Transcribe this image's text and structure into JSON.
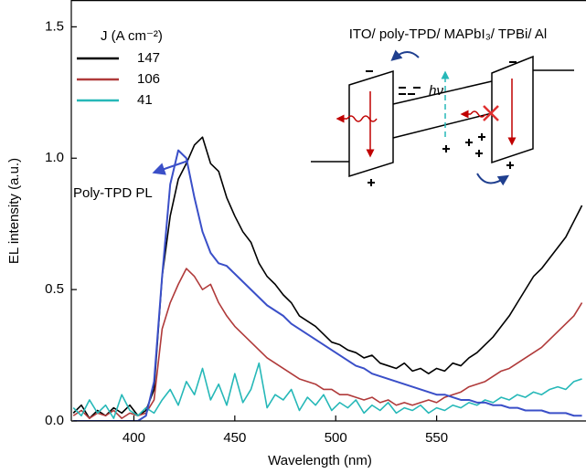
{
  "chart_data": {
    "type": "line",
    "x_label": "Wavelength (nm)",
    "y_label": "EL intensity (a.u.)",
    "legend_title": "J (A cm⁻²)",
    "legend": "upper left",
    "x": [
      370,
      374,
      378,
      382,
      386,
      390,
      394,
      398,
      402,
      406,
      410,
      414,
      418,
      422,
      426,
      430,
      434,
      438,
      442,
      446,
      450,
      454,
      458,
      462,
      466,
      470,
      474,
      478,
      482,
      486,
      490,
      494,
      498,
      502,
      506,
      510,
      514,
      518,
      522,
      526,
      530,
      534,
      538,
      542,
      546,
      550,
      554,
      558,
      562,
      566,
      570,
      574,
      578,
      582,
      586,
      590,
      594,
      598,
      602,
      606,
      610,
      614,
      618,
      622
    ],
    "series": [
      {
        "name": "147",
        "color": "#000000",
        "values": [
          0.03,
          0.06,
          0.01,
          0.04,
          0.02,
          0.05,
          0.03,
          0.06,
          0.02,
          0.04,
          0.12,
          0.55,
          0.78,
          0.92,
          0.98,
          1.05,
          1.08,
          0.98,
          0.95,
          0.85,
          0.78,
          0.72,
          0.68,
          0.6,
          0.55,
          0.52,
          0.48,
          0.45,
          0.4,
          0.38,
          0.36,
          0.33,
          0.3,
          0.29,
          0.27,
          0.26,
          0.24,
          0.25,
          0.22,
          0.21,
          0.2,
          0.22,
          0.19,
          0.2,
          0.18,
          0.2,
          0.19,
          0.22,
          0.21,
          0.24,
          0.26,
          0.29,
          0.32,
          0.36,
          0.4,
          0.45,
          0.5,
          0.55,
          0.58,
          0.62,
          0.66,
          0.7,
          0.76,
          0.82
        ]
      },
      {
        "name": "106",
        "color": "#b03a3a",
        "values": [
          0.02,
          0.04,
          0.01,
          0.03,
          0.02,
          0.04,
          0.01,
          0.03,
          0.02,
          0.03,
          0.08,
          0.35,
          0.45,
          0.52,
          0.58,
          0.55,
          0.5,
          0.52,
          0.45,
          0.4,
          0.36,
          0.33,
          0.3,
          0.27,
          0.24,
          0.22,
          0.2,
          0.18,
          0.16,
          0.15,
          0.14,
          0.12,
          0.12,
          0.1,
          0.1,
          0.09,
          0.08,
          0.09,
          0.07,
          0.08,
          0.06,
          0.07,
          0.06,
          0.07,
          0.08,
          0.07,
          0.09,
          0.1,
          0.11,
          0.13,
          0.14,
          0.15,
          0.17,
          0.19,
          0.2,
          0.22,
          0.24,
          0.26,
          0.28,
          0.31,
          0.34,
          0.37,
          0.4,
          0.45
        ]
      },
      {
        "name": "41",
        "color": "#26b8b8",
        "values": [
          0.05,
          0.02,
          0.08,
          0.03,
          0.06,
          0.01,
          0.1,
          0.04,
          0.02,
          0.05,
          0.03,
          0.08,
          0.12,
          0.06,
          0.15,
          0.1,
          0.2,
          0.08,
          0.14,
          0.06,
          0.18,
          0.07,
          0.12,
          0.22,
          0.05,
          0.1,
          0.08,
          0.12,
          0.04,
          0.09,
          0.06,
          0.1,
          0.04,
          0.07,
          0.05,
          0.08,
          0.03,
          0.06,
          0.04,
          0.07,
          0.03,
          0.05,
          0.04,
          0.06,
          0.03,
          0.05,
          0.04,
          0.06,
          0.05,
          0.07,
          0.06,
          0.08,
          0.07,
          0.09,
          0.08,
          0.1,
          0.09,
          0.11,
          0.1,
          0.12,
          0.13,
          0.12,
          0.15,
          0.16
        ]
      },
      {
        "name": "Poly-TPD PL",
        "color": "#3a4fc8",
        "in_legend": false,
        "values": [
          0,
          0,
          0,
          0,
          0,
          0,
          0,
          0,
          0,
          0.02,
          0.15,
          0.55,
          0.9,
          1.03,
          1.0,
          0.85,
          0.72,
          0.64,
          0.6,
          0.59,
          0.56,
          0.53,
          0.5,
          0.47,
          0.44,
          0.42,
          0.4,
          0.37,
          0.35,
          0.33,
          0.31,
          0.29,
          0.27,
          0.25,
          0.23,
          0.21,
          0.2,
          0.18,
          0.17,
          0.16,
          0.15,
          0.14,
          0.13,
          0.12,
          0.11,
          0.1,
          0.1,
          0.09,
          0.08,
          0.08,
          0.07,
          0.07,
          0.06,
          0.06,
          0.05,
          0.05,
          0.04,
          0.04,
          0.04,
          0.03,
          0.03,
          0.03,
          0.02,
          0.02
        ]
      }
    ],
    "xlim": [
      369,
      624
    ],
    "xticks": [
      400,
      450,
      500,
      550
    ],
    "ylim": [
      0,
      1.6
    ],
    "yticks": [
      {
        "value": 0,
        "label": "0.0"
      },
      {
        "value": 0.5,
        "label": "0.5"
      },
      {
        "value": 1,
        "label": "1.0"
      },
      {
        "value": 1.5,
        "label": "1.5"
      }
    ],
    "grid": false,
    "inset": {
      "title": "ITO/ poly-TPD/ MAPbI₃/ TPBi/ Al",
      "photon_label": "hν"
    }
  }
}
